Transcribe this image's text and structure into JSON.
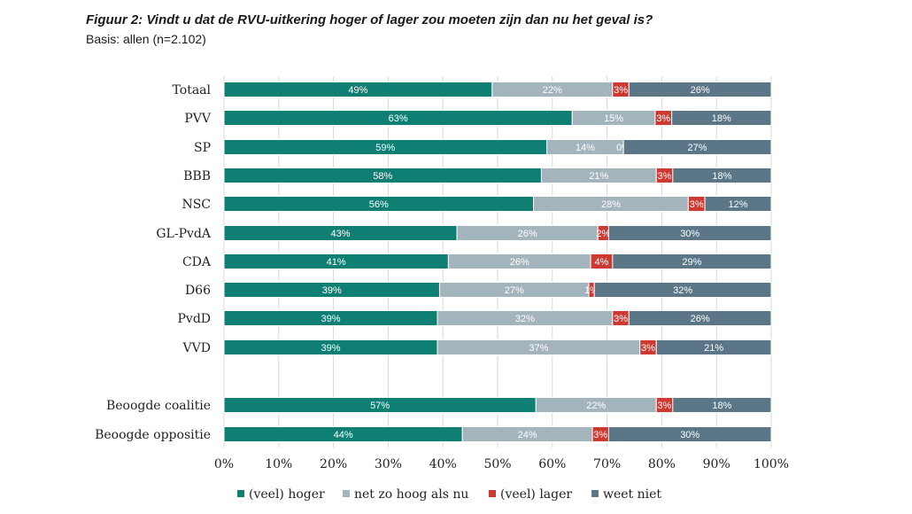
{
  "chart_data": {
    "type": "bar",
    "orientation": "horizontal",
    "stacked": true,
    "title": "Figuur 2: Vindt u dat de RVU-uitkering hoger of lager zou moeten zijn dan nu het geval is?",
    "subtitle": "Basis: allen (n=2.102)",
    "categories": [
      "Totaal",
      "PVV",
      "SP",
      "BBB",
      "NSC",
      "GL-PvdA",
      "CDA",
      "D66",
      "PvdD",
      "VVD",
      "Beoogde coalitie",
      "Beoogde oppositie"
    ],
    "series": [
      {
        "name": "(veel) hoger",
        "color": "#0f7f73",
        "values": [
          49,
          63,
          59,
          58,
          56,
          43,
          41,
          39,
          39,
          39,
          57,
          44
        ],
        "labels": [
          "49%",
          "63%",
          "59%",
          "58%",
          "56%",
          "43%",
          "41%",
          "39%",
          "39%",
          "39%",
          "57%",
          "44%"
        ]
      },
      {
        "name": "net zo hoog als nu",
        "color": "#a4b4bc",
        "values": [
          22,
          15,
          14,
          21,
          28,
          26,
          26,
          27,
          32,
          37,
          22,
          24
        ],
        "labels": [
          "22%",
          "15%",
          "14%",
          "21%",
          "28%",
          "26%",
          "26%",
          "27%",
          "32%",
          "37%",
          "22%",
          "24%"
        ]
      },
      {
        "name": "(veel) lager",
        "color": "#cc3a32",
        "values": [
          3,
          3,
          0,
          3,
          3,
          2,
          4,
          1,
          3,
          3,
          3,
          3
        ],
        "labels": [
          "3%",
          "3%",
          "0%",
          "3%",
          "3%",
          "2%",
          "4%",
          "1%",
          "3%",
          "3%",
          "3%",
          "3%"
        ]
      },
      {
        "name": "weet niet",
        "color": "#5b7686",
        "values": [
          26,
          18,
          27,
          18,
          12,
          30,
          29,
          32,
          26,
          21,
          18,
          30
        ],
        "labels": [
          "26%",
          "18%",
          "27%",
          "18%",
          "12%",
          "30%",
          "29%",
          "32%",
          "26%",
          "21%",
          "18%",
          "30%"
        ]
      }
    ],
    "xlim": [
      0,
      100
    ],
    "xticks": [
      "0%",
      "10%",
      "20%",
      "30%",
      "40%",
      "50%",
      "60%",
      "70%",
      "80%",
      "90%",
      "100%"
    ],
    "grid": true,
    "legend": "bottom"
  }
}
